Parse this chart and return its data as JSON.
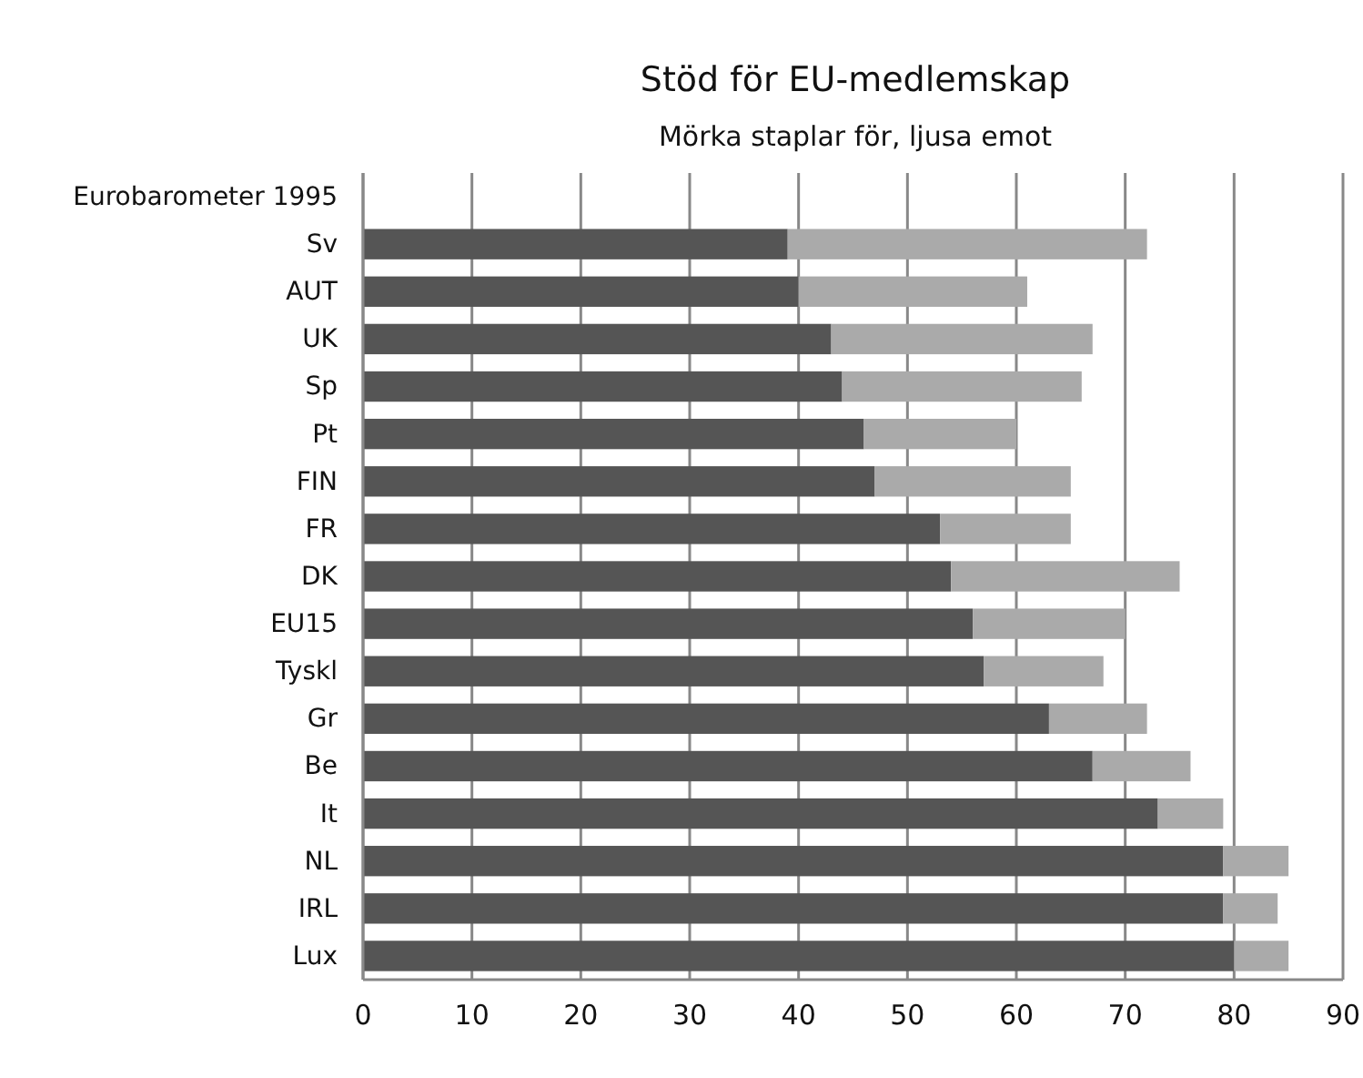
{
  "chart_data": {
    "type": "bar",
    "orientation": "horizontal",
    "stacked": true,
    "title": "Stöd för EU-medlemskap",
    "subtitle": "Mörka staplar för, ljusa emot",
    "categories": [
      "Eurobarometer 1995",
      "Sv",
      "AUT",
      "UK",
      "Sp",
      "Pt",
      "FIN",
      "FR",
      "DK",
      "EU15",
      "Tyskl",
      "Gr",
      "Be",
      "It",
      "NL",
      "IRL",
      "Lux"
    ],
    "series": [
      {
        "color": "#555555",
        "values": [
          null,
          39,
          40,
          43,
          44,
          46,
          47,
          53,
          54,
          56,
          57,
          63,
          67,
          73,
          79,
          79,
          80
        ]
      },
      {
        "color": "#aaaaaa",
        "values": [
          null,
          33,
          21,
          24,
          22,
          14,
          18,
          12,
          21,
          14,
          11,
          9,
          9,
          6,
          6,
          5,
          5
        ]
      }
    ],
    "xlim": [
      0,
      90
    ],
    "xticks": [
      0,
      10,
      20,
      30,
      40,
      50,
      60,
      70,
      80,
      90
    ],
    "grid": "x"
  }
}
